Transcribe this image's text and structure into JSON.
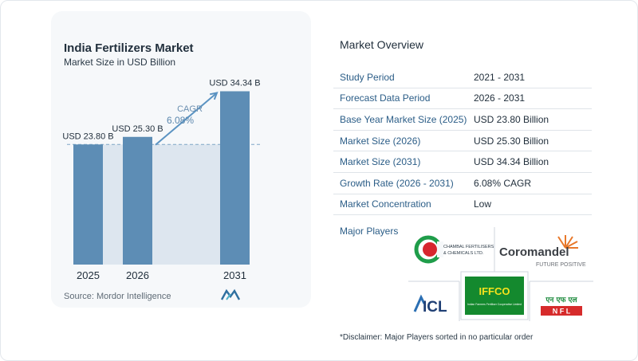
{
  "chart": {
    "title": "India Fertilizers Market",
    "subtitle": "Market Size in USD Billion",
    "source": "Source: Mordor Intelligence",
    "cagr_label": "CAGR",
    "cagr_value": "6.08%"
  },
  "chart_data": {
    "type": "bar",
    "title": "India Fertilizers Market",
    "subtitle": "Market Size in USD Billion",
    "categories": [
      "2025",
      "2026",
      "2031"
    ],
    "values": [
      23.8,
      25.3,
      34.34
    ],
    "value_labels": [
      "USD 23.80 B",
      "USD 25.30 B",
      "USD 34.34 B"
    ],
    "ylim": [
      0,
      36
    ],
    "annotation": "CAGR 6.08%",
    "colors": {
      "bar": "#5d8db5",
      "bar_light": "#dde6ef",
      "arrow": "#5b93c2"
    }
  },
  "overview": {
    "title": "Market Overview",
    "rows": [
      {
        "key": "Study Period",
        "value": "2021 - 2031"
      },
      {
        "key": "Forecast Data Period",
        "value": "2026 - 2031"
      },
      {
        "key": "Base Year Market Size (2025)",
        "value": "USD 23.80 Billion"
      },
      {
        "key": "Market Size (2026)",
        "value": "USD 25.30 Billion"
      },
      {
        "key": "Market Size (2031)",
        "value": "USD 34.34 Billion"
      },
      {
        "key": "Growth Rate (2026 - 2031)",
        "value": "6.08% CAGR"
      },
      {
        "key": "Market Concentration",
        "value": "Low"
      }
    ],
    "major_players_label": "Major Players",
    "players": {
      "chambal_line1": "CHAMBAL FERTILISERS",
      "chambal_line2": "& CHEMICALS LTD.",
      "coromandel": "Coromandel",
      "coromandel_tag": "FUTURE POSITIVE",
      "icl": "ICL",
      "iffco": "IFFCO",
      "iffco_sub": "Indian Farmers Fertiliser Cooperative Limited",
      "nfl_hindi": "एन एफ एल",
      "nfl": "N F L"
    },
    "disclaimer": "*Disclaimer: Major Players sorted in no particular order"
  }
}
